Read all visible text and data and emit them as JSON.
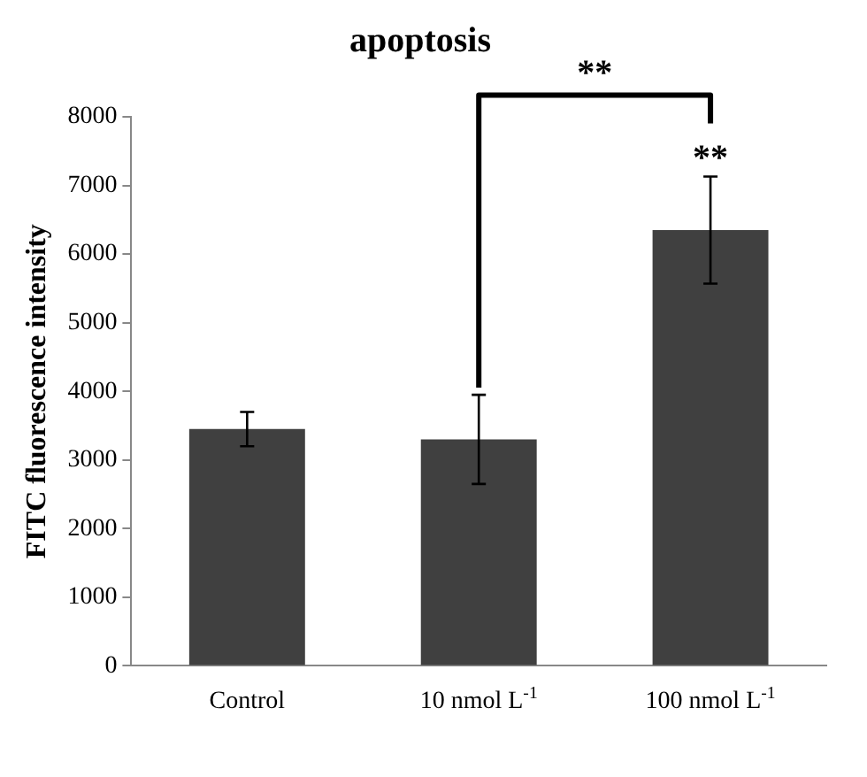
{
  "chart_data": {
    "type": "bar",
    "title": "apoptosis",
    "ylabel": "FITC fluorescence intensity",
    "categories": [
      "Control",
      "10 nmol L$^{-1}$",
      "100 nmol L$^{-1}$"
    ],
    "values": [
      3450,
      3300,
      6350
    ],
    "errors": [
      250,
      650,
      780
    ],
    "color": "#404040",
    "ylim": [
      0,
      8000
    ],
    "yticks": [
      0,
      1000,
      2000,
      3000,
      4000,
      5000,
      6000,
      7000,
      8000
    ],
    "grid": false,
    "legend": false,
    "annotations": [
      "**",
      "**"
    ]
  }
}
